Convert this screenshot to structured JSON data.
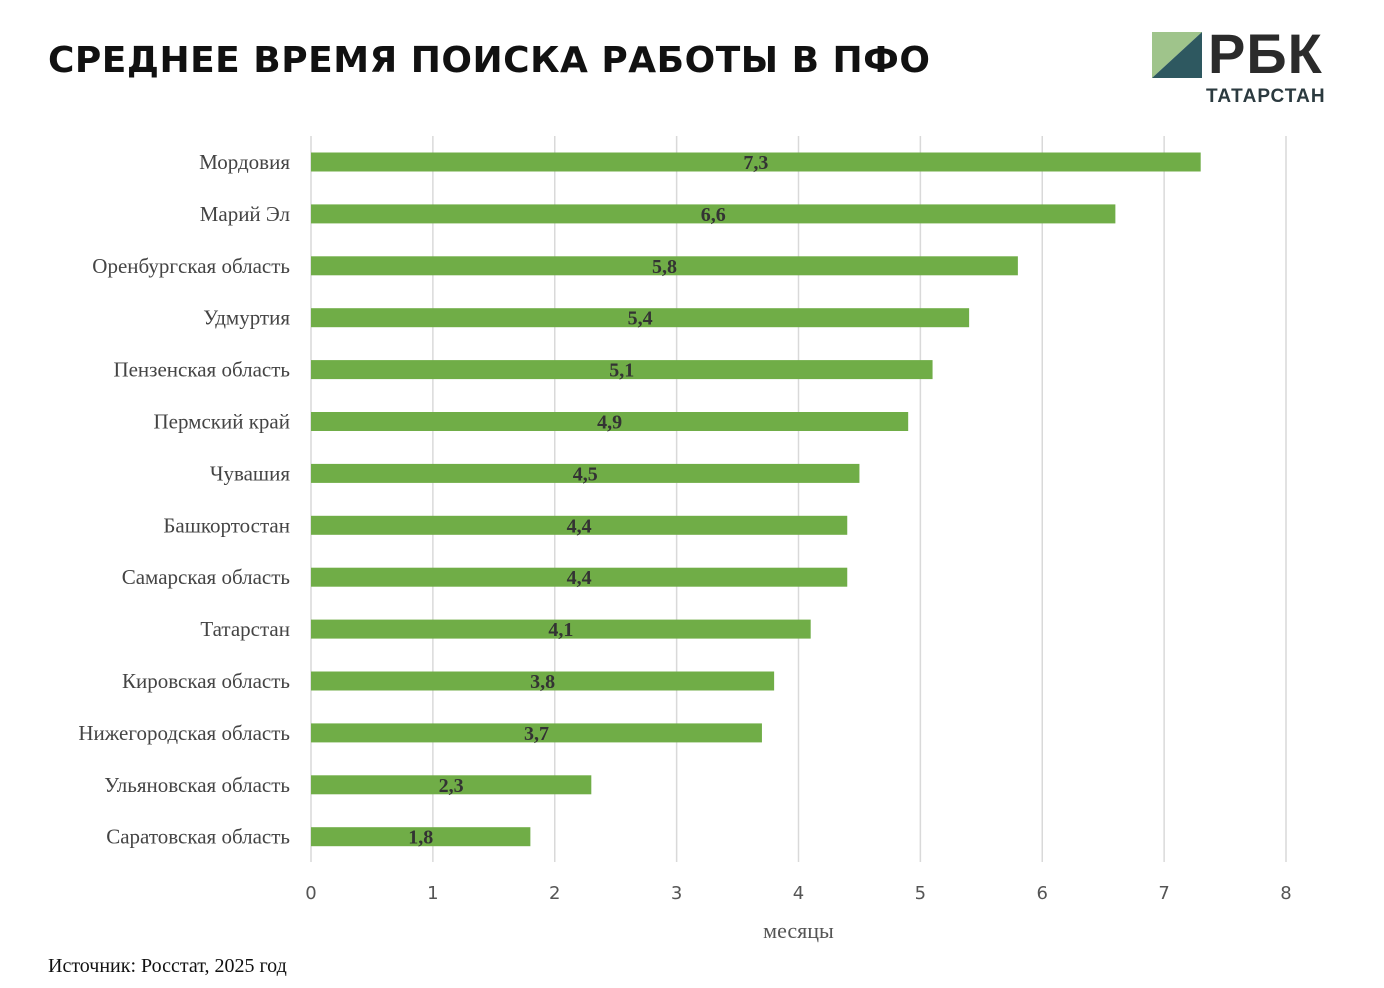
{
  "header": {
    "title": "СРЕДНЕЕ ВРЕМЯ ПОИСКА РАБОТЫ В ПФО"
  },
  "logo": {
    "word": "РБК",
    "sub": "ТАТАРСТАН",
    "colors": {
      "light": "#9fc48b",
      "dark": "#2e5860",
      "text": "#2b2b2b"
    }
  },
  "chart_data": {
    "type": "bar",
    "orientation": "horizontal",
    "categories": [
      "Мордовия",
      "Марий Эл",
      "Оренбургская область",
      "Удмуртия",
      "Пензенская область",
      "Пермский край",
      "Чувашия",
      "Башкортостан",
      "Самарская область",
      "Татарстан",
      "Кировская область",
      "Нижегородская область",
      "Ульяновская область",
      "Саратовская область"
    ],
    "values": [
      7.3,
      6.6,
      5.8,
      5.4,
      5.1,
      4.9,
      4.5,
      4.4,
      4.4,
      4.1,
      3.8,
      3.7,
      2.3,
      1.8
    ],
    "value_labels": [
      "7,3",
      "6,6",
      "5,8",
      "5,4",
      "5,1",
      "4,9",
      "4,5",
      "4,4",
      "4,4",
      "4,1",
      "3,8",
      "3,7",
      "2,3",
      "1,8"
    ],
    "title": "",
    "xlabel": "месяцы",
    "ylabel": "",
    "xlim": [
      0,
      8
    ],
    "x_ticks": [
      "0",
      "1",
      "2",
      "3",
      "4",
      "5",
      "6",
      "7",
      "8"
    ],
    "grid": true,
    "legend": "none",
    "bar_color": "#70ad47",
    "grid_color": "#d9d9d9"
  },
  "footer": {
    "source": "Источник: Росстат, 2025 год"
  }
}
